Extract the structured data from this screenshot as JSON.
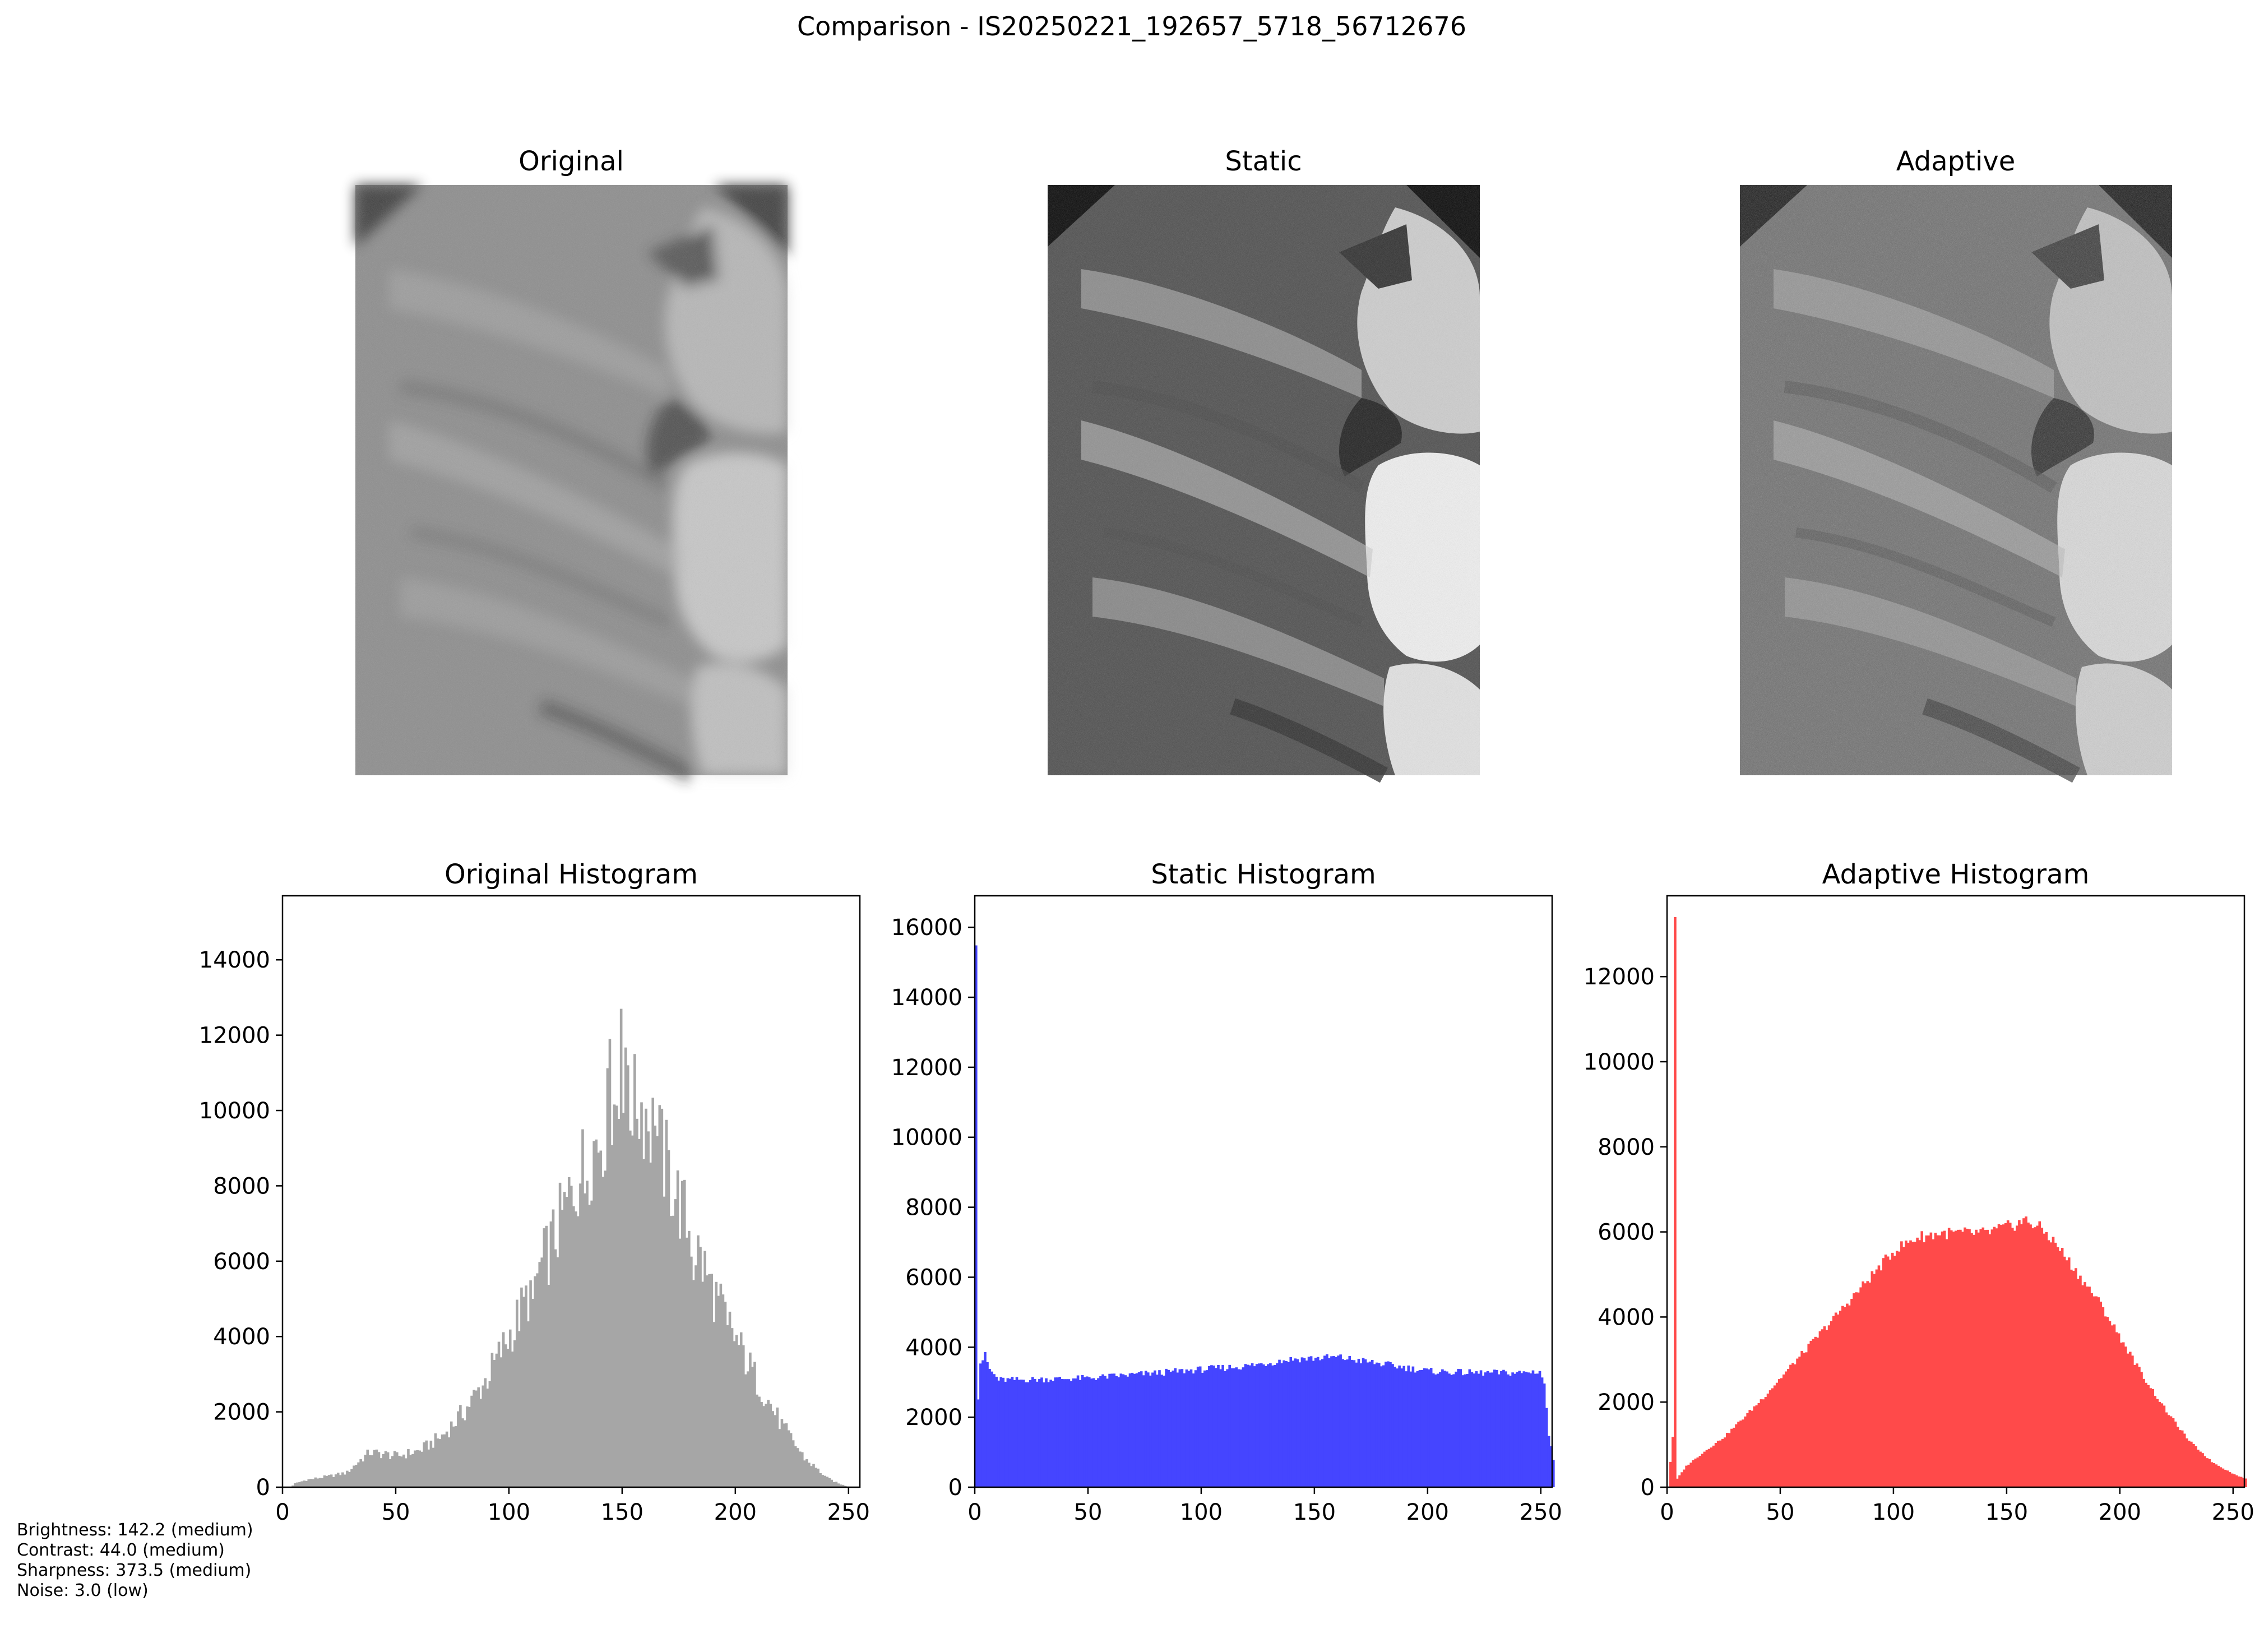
{
  "figure": {
    "title": "Comparison - IS20250221_192657_5718_56712676"
  },
  "panels": {
    "original_title": "Original",
    "static_title": "Static",
    "adaptive_title": "Adaptive"
  },
  "stats": [
    "Brightness: 142.2 (medium)",
    "Contrast: 44.0 (medium)",
    "Sharpness: 373.5 (medium)",
    "Noise: 3.0 (low)"
  ],
  "chart_data": [
    {
      "type": "bar",
      "title": "Original Histogram",
      "color": "#a6a6a6",
      "xlim": [
        0,
        255
      ],
      "ylim": [
        0,
        15700
      ],
      "xticks": [
        0,
        50,
        100,
        150,
        200,
        250
      ],
      "yticks": [
        0,
        2000,
        4000,
        6000,
        8000,
        10000,
        12000,
        14000
      ],
      "profile": [
        [
          0,
          0
        ],
        [
          3,
          0
        ],
        [
          5,
          100
        ],
        [
          10,
          200
        ],
        [
          20,
          300
        ],
        [
          28,
          400
        ],
        [
          33,
          700
        ],
        [
          38,
          950
        ],
        [
          45,
          900
        ],
        [
          50,
          850
        ],
        [
          60,
          1000
        ],
        [
          70,
          1400
        ],
        [
          80,
          2100
        ],
        [
          90,
          3000
        ],
        [
          100,
          4200
        ],
        [
          110,
          5500
        ],
        [
          120,
          6900
        ],
        [
          130,
          8500
        ],
        [
          140,
          9700
        ],
        [
          148,
          10600
        ],
        [
          155,
          10700
        ],
        [
          160,
          10300
        ],
        [
          165,
          9500
        ],
        [
          170,
          8600
        ],
        [
          180,
          6900
        ],
        [
          190,
          5300
        ],
        [
          200,
          4000
        ],
        [
          210,
          2800
        ],
        [
          220,
          1700
        ],
        [
          230,
          800
        ],
        [
          240,
          250
        ],
        [
          245,
          100
        ],
        [
          250,
          0
        ],
        [
          255,
          0
        ]
      ],
      "spikes": [
        [
          149,
          12700
        ],
        [
          144,
          11900
        ],
        [
          155,
          11500
        ],
        [
          152,
          11200
        ],
        [
          164,
          9600
        ],
        [
          133,
          7800
        ],
        [
          171,
          7200
        ],
        [
          181,
          5500
        ],
        [
          196,
          4300
        ],
        [
          110,
          5000
        ],
        [
          102,
          3900
        ]
      ]
    },
    {
      "type": "bar",
      "title": "Static Histogram",
      "color": "#4545ff",
      "xlim": [
        0,
        255
      ],
      "ylim": [
        0,
        16900
      ],
      "xticks": [
        0,
        50,
        100,
        150,
        200,
        250
      ],
      "yticks": [
        0,
        2000,
        4000,
        6000,
        8000,
        10000,
        12000,
        14000,
        16000
      ],
      "profile": [
        [
          0,
          16100
        ],
        [
          1,
          2600
        ],
        [
          2,
          3600
        ],
        [
          4,
          3800
        ],
        [
          6,
          3400
        ],
        [
          10,
          3100
        ],
        [
          20,
          3100
        ],
        [
          50,
          3150
        ],
        [
          80,
          3300
        ],
        [
          100,
          3400
        ],
        [
          120,
          3500
        ],
        [
          140,
          3700
        ],
        [
          160,
          3750
        ],
        [
          180,
          3550
        ],
        [
          200,
          3350
        ],
        [
          220,
          3300
        ],
        [
          240,
          3300
        ],
        [
          249,
          3350
        ],
        [
          251,
          3000
        ],
        [
          253,
          1500
        ],
        [
          255,
          800
        ]
      ],
      "spikes": []
    },
    {
      "type": "bar",
      "title": "Adaptive Histogram",
      "color": "#ff4a4a",
      "xlim": [
        0,
        255
      ],
      "ylim": [
        0,
        13900
      ],
      "xticks": [
        0,
        50,
        100,
        150,
        200,
        250
      ],
      "yticks": [
        0,
        2000,
        4000,
        6000,
        8000,
        10000,
        12000
      ],
      "profile": [
        [
          0,
          0
        ],
        [
          2,
          1200
        ],
        [
          3,
          13200
        ],
        [
          4,
          200
        ],
        [
          8,
          500
        ],
        [
          15,
          800
        ],
        [
          25,
          1200
        ],
        [
          40,
          2000
        ],
        [
          50,
          2600
        ],
        [
          60,
          3200
        ],
        [
          70,
          3800
        ],
        [
          80,
          4400
        ],
        [
          90,
          5000
        ],
        [
          100,
          5600
        ],
        [
          110,
          5900
        ],
        [
          120,
          6000
        ],
        [
          130,
          6000
        ],
        [
          140,
          6000
        ],
        [
          150,
          6150
        ],
        [
          158,
          6300
        ],
        [
          165,
          6100
        ],
        [
          172,
          5700
        ],
        [
          180,
          5100
        ],
        [
          190,
          4400
        ],
        [
          200,
          3500
        ],
        [
          210,
          2600
        ],
        [
          220,
          1800
        ],
        [
          230,
          1100
        ],
        [
          240,
          600
        ],
        [
          250,
          300
        ],
        [
          255,
          200
        ]
      ],
      "spikes": []
    }
  ]
}
